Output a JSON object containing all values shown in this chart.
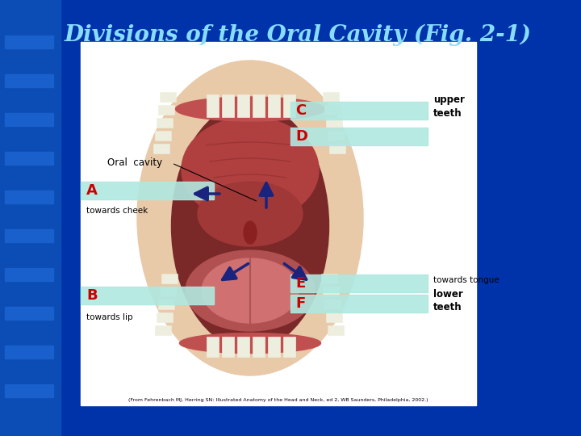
{
  "title": "Divisions of the Oral Cavity (Fig. 2-1)",
  "title_color": "#88DDFF",
  "bg_color": "#0033AA",
  "left_stripe_color": "#0B4DB5",
  "panel_bg": "#FFFFFF",
  "label_A": "A",
  "label_B": "B",
  "label_C": "C",
  "label_D": "D",
  "label_E": "E",
  "label_F": "F",
  "text_oral_cavity": "Oral  cavity",
  "text_towards_cheek": "towards cheek",
  "text_towards_lip": "towards lip",
  "text_towards_tongue": "towards tongue",
  "text_upper_teeth": "upper\nteeth",
  "text_lower_teeth": "lower\nteeth",
  "caption": "(From Fehrenbach MJ, Herring SN: Illustrated Anatomy of the Head and Neck, ed 2, WB Saunders, Philadelphia, 2002.)",
  "highlight_color": "#B0E8E0",
  "label_color": "#CC0000",
  "arrow_color": "#1A237E",
  "skin_color": "#E8C9A8",
  "dark_red": "#7A2828",
  "mid_red": "#B04040",
  "light_red": "#CC6655",
  "tongue_color": "#D07070",
  "gum_color": "#C05050"
}
